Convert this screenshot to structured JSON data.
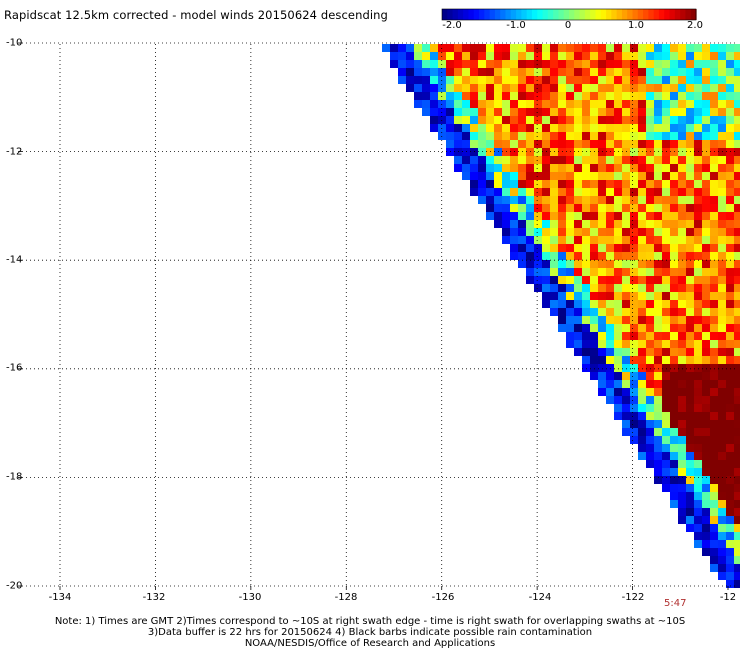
{
  "title": "Rapidscat 12.5km corrected - model winds 20150624 descending",
  "colorbar": {
    "ticks": [
      "-2.0",
      "-1.0",
      "0",
      "1.0",
      "2.0"
    ],
    "tick_values": [
      -2.0,
      -1.0,
      0,
      1.0,
      2.0
    ],
    "range": [
      -2.0,
      2.0
    ],
    "colors": [
      "#00007f",
      "#0000ff",
      "#0080ff",
      "#00ffff",
      "#80ff80",
      "#ffff00",
      "#ff8000",
      "#ff0000",
      "#800000"
    ]
  },
  "map": {
    "lat_labels": [
      "-10",
      "-12",
      "-14",
      "-16",
      "-18",
      "-20"
    ],
    "lon_labels": [
      "-134",
      "-132",
      "-130",
      "-128",
      "-126",
      "-124",
      "-122",
      "-12"
    ],
    "lat_range": [
      -20,
      -10
    ],
    "lon_range": [
      -135,
      -120
    ],
    "grid_color": "#000000",
    "background": "#ffffff"
  },
  "timestamp": "5:47",
  "notes": [
    "Note: 1) Times are GMT 2)Times correspond to ~10S at right swath edge - time is right swath for overlapping swaths at ~10S",
    "3)Data buffer is 22 hrs for 20150624 4) Black barbs indicate possible rain contamination",
    "NOAA/NESDIS/Office of Research and Applications"
  ]
}
